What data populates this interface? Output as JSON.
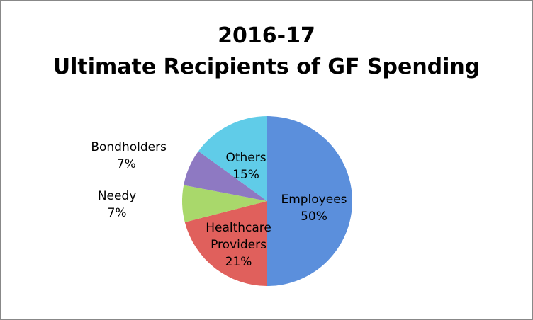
{
  "chart_data": {
    "type": "pie",
    "title": [
      "2016-17",
      "Ultimate Recipients of GF Spending"
    ],
    "categories": [
      "Employees",
      "Healthcare Providers",
      "Needy",
      "Bondholders",
      "Others"
    ],
    "values": [
      50,
      21,
      7,
      7,
      15
    ],
    "value_labels": [
      "50%",
      "21%",
      "7%",
      "7%",
      "15%"
    ],
    "colors": [
      "#5b8fdc",
      "#e0605c",
      "#a9d86b",
      "#8e79c2",
      "#60cce8"
    ]
  }
}
